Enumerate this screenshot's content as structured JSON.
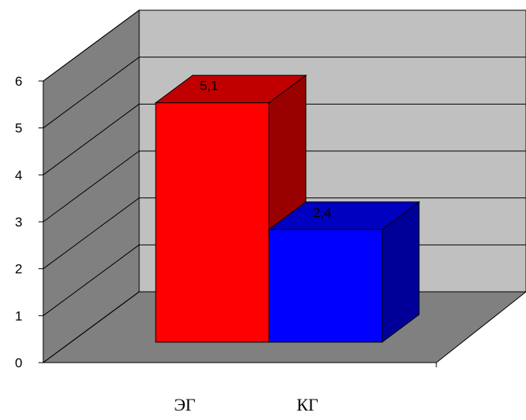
{
  "chart_data": {
    "type": "bar",
    "categories": [
      "ЭГ",
      "КГ"
    ],
    "values": [
      5.1,
      2.4
    ],
    "data_labels": [
      "5,1",
      "2,4"
    ],
    "ylim": [
      0,
      6
    ],
    "yticks": [
      0,
      1,
      2,
      3,
      4,
      5,
      6
    ],
    "ytick_labels": [
      "0",
      "1",
      "2",
      "3",
      "4",
      "5",
      "6"
    ],
    "grid": true,
    "legend": "none",
    "style": "3d-column",
    "colors": {
      "back_wall": "#c0c0c0",
      "side_wall": "#808080",
      "floor": "#808080",
      "bar_front": [
        "#ff0000",
        "#0000ff"
      ],
      "bar_top": [
        "#c00000",
        "#0000c0"
      ],
      "bar_side": [
        "#990000",
        "#000099"
      ]
    }
  }
}
